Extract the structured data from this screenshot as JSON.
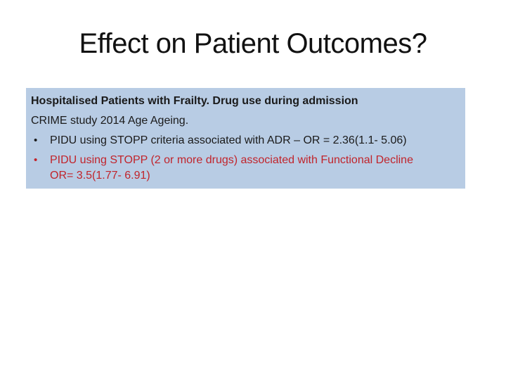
{
  "slide": {
    "title": "Effect on Patient Outcomes?"
  },
  "box": {
    "background_color": "#b8cce4",
    "text_color": "#1a1a1a",
    "red_color": "#c1242b",
    "bullet_glyph": "•",
    "heading": "Hospitalised Patients with Frailty. Drug use during admission",
    "subheading": "CRIME study 2014 Age Ageing.",
    "bullets": [
      {
        "color": "#1a1a1a",
        "lines": [
          "PIDU using STOPP criteria associated with ADR – OR = 2.36(1.1- 5.06)"
        ]
      },
      {
        "color": "#c1242b",
        "lines": [
          "PIDU using STOPP (2 or more drugs) associated with Functional Decline",
          "OR= 3.5(1.77- 6.91)"
        ]
      }
    ]
  }
}
